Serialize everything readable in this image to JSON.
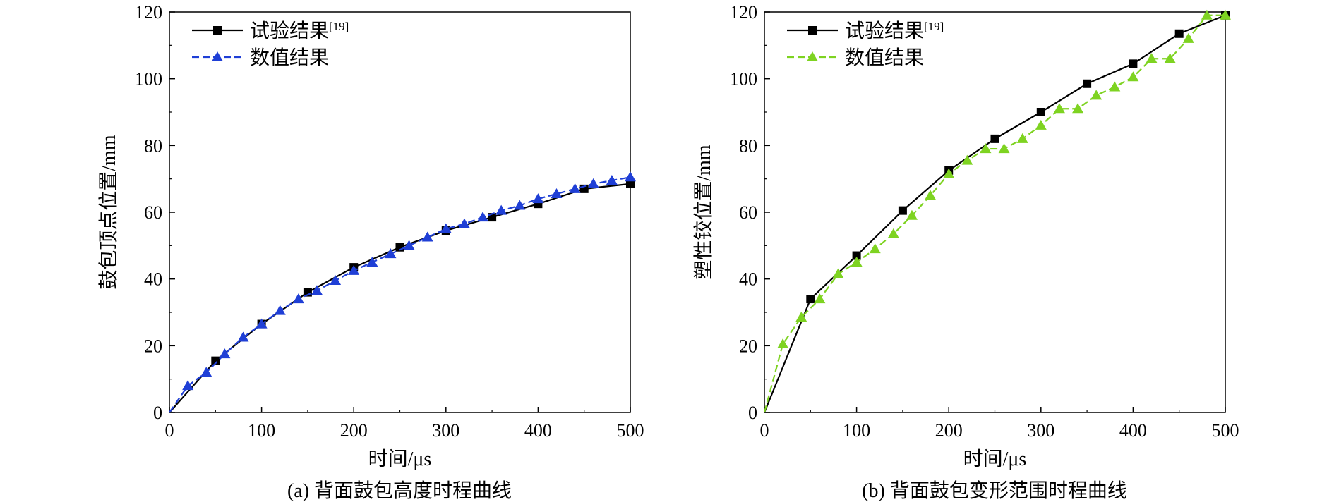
{
  "chart_data": [
    {
      "type": "line",
      "caption": "(a) 背面鼓包高度时程曲线",
      "xlabel": "时间/μs",
      "ylabel": "鼓包顶点位置/mm",
      "xlim": [
        0,
        500
      ],
      "ylim": [
        0,
        120
      ],
      "xticks": [
        "0",
        "100",
        "200",
        "300",
        "400",
        "500"
      ],
      "yticks": [
        "0",
        "20",
        "40",
        "60",
        "80",
        "100",
        "120"
      ],
      "grid": false,
      "legend_position": "top-left",
      "series": [
        {
          "name": "试验结果",
          "name_sup": "[19]",
          "color": "#000000",
          "marker": "square",
          "dashed": false,
          "x": [
            0,
            50,
            100,
            150,
            200,
            250,
            300,
            350,
            400,
            450,
            500
          ],
          "y": [
            0,
            15.5,
            26.5,
            36,
            43.5,
            49.5,
            54.5,
            58.5,
            62.5,
            67,
            68.5
          ]
        },
        {
          "name": "数值结果",
          "color": "#1f3fd6",
          "marker": "triangle",
          "dashed": true,
          "x": [
            0,
            20,
            40,
            60,
            80,
            100,
            120,
            140,
            160,
            180,
            200,
            220,
            240,
            260,
            280,
            300,
            320,
            340,
            360,
            380,
            400,
            420,
            440,
            460,
            480,
            500
          ],
          "y": [
            0,
            8,
            12,
            17.5,
            22.5,
            26.5,
            30.5,
            34,
            36.5,
            39.5,
            42.5,
            45,
            47.5,
            50,
            52.5,
            55,
            56.5,
            58.5,
            60.5,
            62,
            64,
            65.5,
            67,
            68.5,
            69.5,
            70.5
          ]
        }
      ]
    },
    {
      "type": "line",
      "caption": "(b) 背面鼓包变形范围时程曲线",
      "xlabel": "时间/μs",
      "ylabel": "塑性铰位置/mm",
      "xlim": [
        0,
        500
      ],
      "ylim": [
        0,
        120
      ],
      "xticks": [
        "0",
        "100",
        "200",
        "300",
        "400",
        "500"
      ],
      "yticks": [
        "0",
        "20",
        "40",
        "60",
        "80",
        "100",
        "120"
      ],
      "grid": false,
      "legend_position": "top-left",
      "series": [
        {
          "name": "试验结果",
          "name_sup": "[19]",
          "color": "#000000",
          "marker": "square",
          "dashed": false,
          "x": [
            0,
            50,
            100,
            150,
            200,
            250,
            300,
            350,
            400,
            450,
            500
          ],
          "y": [
            0,
            34,
            47,
            60.5,
            72.5,
            82,
            90,
            98.5,
            104.5,
            113.5,
            119
          ]
        },
        {
          "name": "数值结果",
          "color": "#7ed321",
          "marker": "triangle",
          "dashed": true,
          "x": [
            0,
            20,
            40,
            60,
            80,
            100,
            120,
            140,
            160,
            180,
            200,
            220,
            240,
            260,
            280,
            300,
            320,
            340,
            360,
            380,
            400,
            420,
            440,
            460,
            480,
            500
          ],
          "y": [
            0,
            20.5,
            28.5,
            34,
            41.5,
            45,
            49,
            53.5,
            59,
            65,
            71.5,
            75.5,
            79,
            79,
            82,
            86,
            91,
            91,
            95,
            97.5,
            100.5,
            106,
            106,
            112,
            119,
            119
          ]
        }
      ]
    }
  ]
}
